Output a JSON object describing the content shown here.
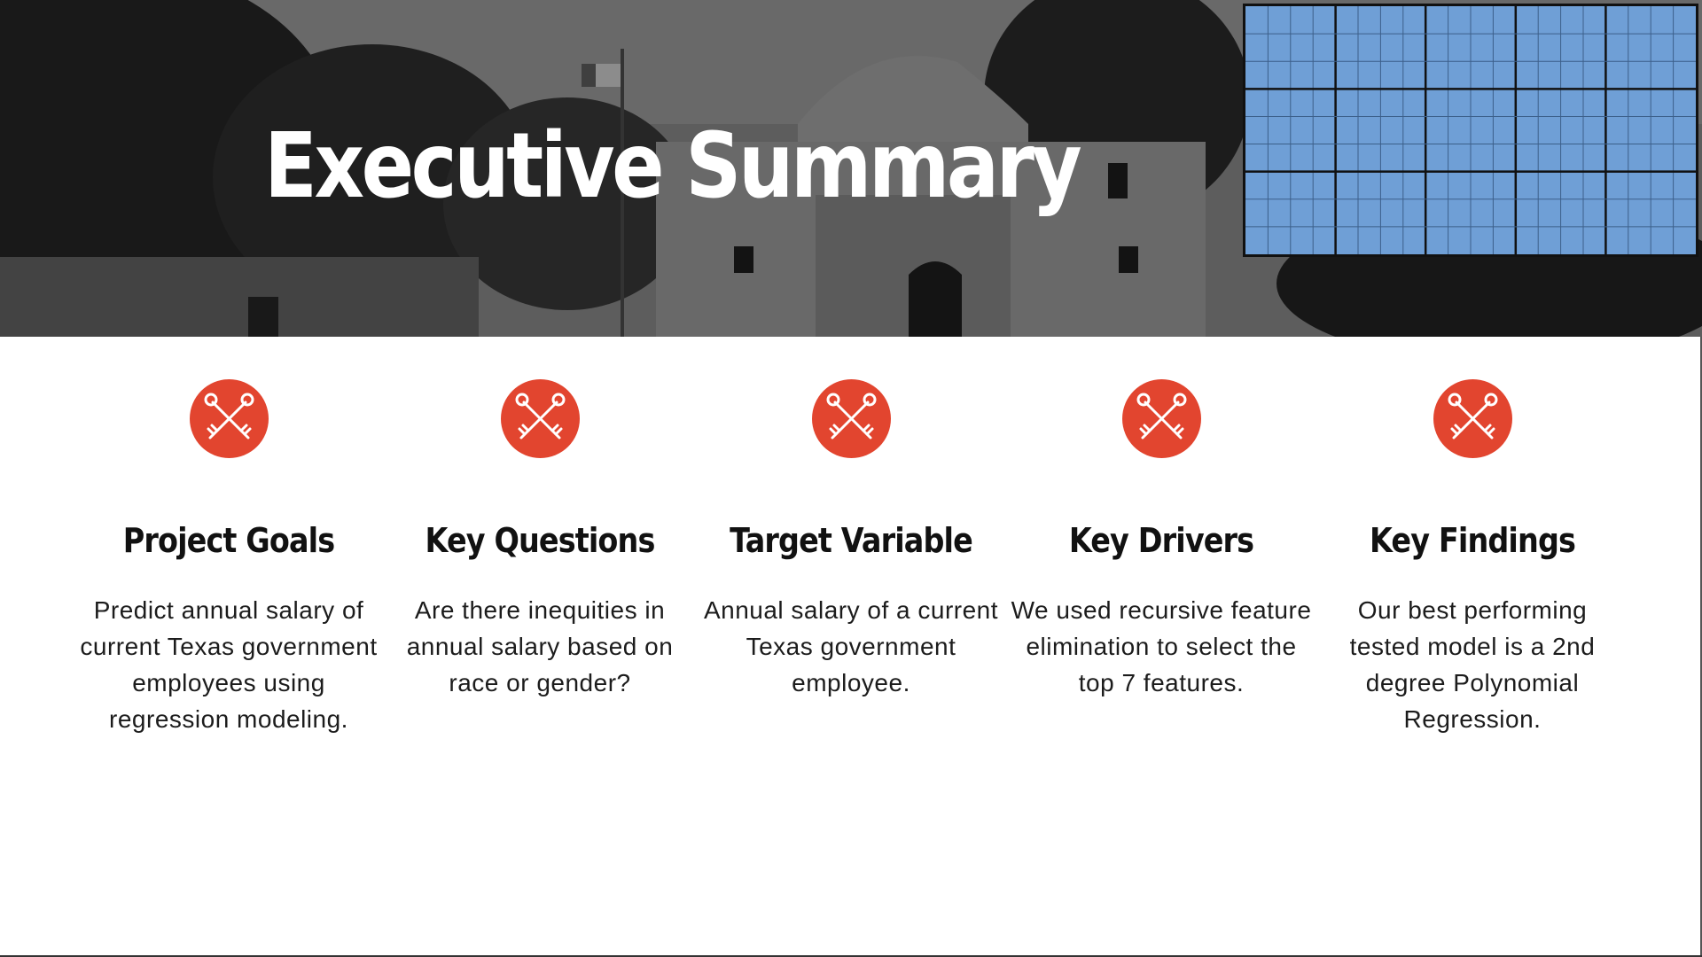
{
  "slide": {
    "title": "Executive Summary",
    "accent_color": "#e2452f",
    "grid_color": "#6f9fd6"
  },
  "cards": [
    {
      "icon": "crossed-keys-icon",
      "title": "Project Goals",
      "body": "Predict annual salary of current Texas government employees using regression modeling."
    },
    {
      "icon": "crossed-keys-icon",
      "title": "Key Questions",
      "body": "Are there inequities in annual salary based on race or gender?"
    },
    {
      "icon": "crossed-keys-icon",
      "title": "Target Variable",
      "body": "Annual salary of a current Texas government employee."
    },
    {
      "icon": "crossed-keys-icon",
      "title": "Key Drivers",
      "body": "We used recursive feature elimination to select the top 7 features."
    },
    {
      "icon": "crossed-keys-icon",
      "title": "Key Findings",
      "body": "Our best performing tested model is a 2nd degree Polynomial Regression."
    }
  ]
}
